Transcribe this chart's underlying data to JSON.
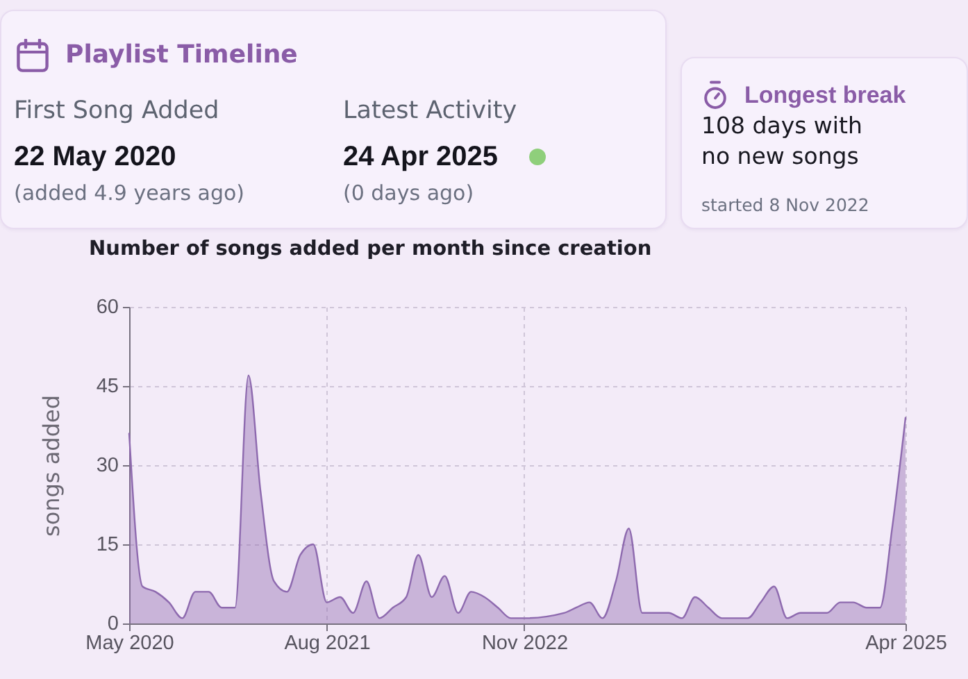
{
  "chart_data": [
    {
      "type": "other",
      "title": "Playlist Timeline",
      "annotations": [
        "First Song Added",
        "22 May 2020",
        "(added 4.9 years ago)",
        "Latest Activity",
        "24 Apr 2025",
        "(0 days ago)"
      ]
    },
    {
      "type": "other",
      "title": "Longest break",
      "annotations": [
        "108 days with no new songs",
        "started 8 Nov 2022"
      ]
    },
    {
      "type": "area",
      "title": "Number of songs added per month since creation",
      "ylabel": "songs added",
      "x": [
        "2020-05",
        "2020-06",
        "2020-07",
        "2020-08",
        "2020-09",
        "2020-10",
        "2020-11",
        "2020-12",
        "2021-01",
        "2021-02",
        "2021-03",
        "2021-04",
        "2021-05",
        "2021-06",
        "2021-07",
        "2021-08",
        "2021-09",
        "2021-10",
        "2021-11",
        "2021-12",
        "2022-01",
        "2022-02",
        "2022-03",
        "2022-04",
        "2022-05",
        "2022-06",
        "2022-07",
        "2022-08",
        "2022-09",
        "2022-10",
        "2022-11",
        "2023-02",
        "2023-03",
        "2023-04",
        "2023-05",
        "2023-06",
        "2023-07",
        "2023-08",
        "2023-09",
        "2023-10",
        "2023-11",
        "2023-12",
        "2024-01",
        "2024-02",
        "2024-03",
        "2024-04",
        "2024-05",
        "2024-06",
        "2024-07",
        "2024-08",
        "2024-09",
        "2024-10",
        "2024-11",
        "2024-12",
        "2025-01",
        "2025-02",
        "2025-03",
        "2025-04"
      ],
      "series": [
        {
          "color": "#8e6aaf",
          "values": [
            36,
            7,
            6,
            4,
            1,
            6,
            6,
            3,
            3,
            47,
            25,
            8,
            6,
            13,
            15,
            4,
            5,
            2,
            8,
            1,
            3,
            5,
            13,
            5,
            9,
            2,
            6,
            5,
            3,
            1,
            1,
            2,
            3,
            4,
            1,
            8,
            18,
            2,
            2,
            2,
            1,
            5,
            3,
            1,
            1,
            1,
            4,
            7,
            1,
            2,
            2,
            2,
            4,
            4,
            3,
            3,
            18,
            39
          ]
        }
      ],
      "xlim": [
        "2020-05",
        "2025-04"
      ],
      "xticks": [
        {
          "value": "2020-05",
          "label": "May 2020"
        },
        {
          "value": "2021-08",
          "label": "Aug 2021"
        },
        {
          "value": "2022-11",
          "label": "Nov 2022"
        },
        {
          "value": "2025-04",
          "label": "Apr 2025"
        }
      ],
      "ylim": [
        0,
        60
      ],
      "yticks": [
        0,
        15,
        30,
        45,
        60
      ],
      "grid": true
    }
  ]
}
